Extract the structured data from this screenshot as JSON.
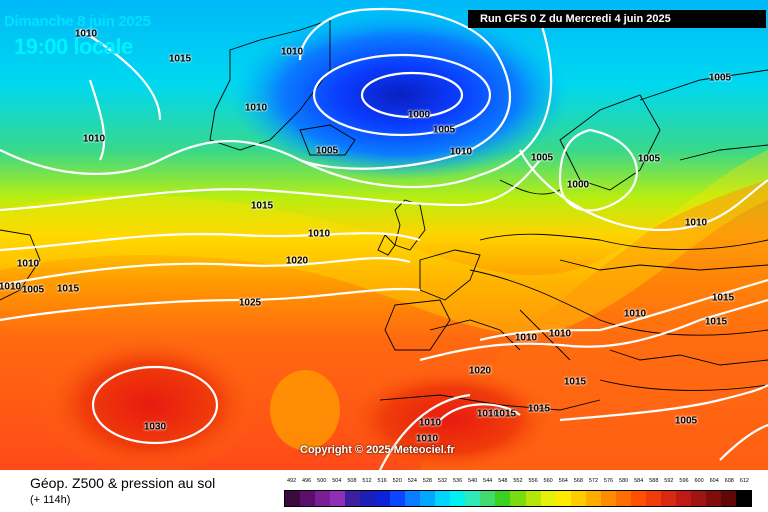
{
  "header": {
    "date": "Dimanche 8 juin 2025",
    "local_time": "19:00 locale",
    "run": "Run GFS 0 Z du Mercredi 4 juin 2025"
  },
  "copyright": "Copyright © 2025 Meteociel.fr",
  "footer": {
    "title": "Géop. Z500 & pression au sol",
    "step": "(+ 114h)"
  },
  "isobar_labels": [
    "1010",
    "1015",
    "1010",
    "1010",
    "1000",
    "1005",
    "1010",
    "1005",
    "1005",
    "1005",
    "1010",
    "1005",
    "1015",
    "1000",
    "1010",
    "1010",
    "1020",
    "1010",
    "1005",
    "1015",
    "1025",
    "1010",
    "1010",
    "1015",
    "1015",
    "1020",
    "1015",
    "1010",
    "1010",
    "1010",
    "1015",
    "1030",
    "1015",
    "1010",
    "1010",
    "1005"
  ],
  "legend": {
    "values": [
      "492",
      "496",
      "500",
      "504",
      "508",
      "512",
      "516",
      "520",
      "524",
      "528",
      "532",
      "536",
      "540",
      "544",
      "548",
      "552",
      "556",
      "560",
      "564",
      "568",
      "572",
      "576",
      "580",
      "584",
      "588",
      "592",
      "596",
      "600",
      "604",
      "608",
      "612"
    ],
    "colors": [
      "#3b0a3f",
      "#5a0f6a",
      "#7a1e96",
      "#8f2fb8",
      "#3a1fa0",
      "#1d1db8",
      "#0b22d6",
      "#0a45ff",
      "#0a7cff",
      "#00a8ff",
      "#00d4ff",
      "#00f0f0",
      "#30e8b8",
      "#40dc70",
      "#3cd020",
      "#78dc10",
      "#b4e60a",
      "#e6f00a",
      "#ffea00",
      "#ffcc00",
      "#ffae00",
      "#ff8c00",
      "#ff6e00",
      "#ff5000",
      "#f03c0a",
      "#d82812",
      "#c01a14",
      "#a01414",
      "#800c0c",
      "#600808",
      "#000000"
    ]
  }
}
